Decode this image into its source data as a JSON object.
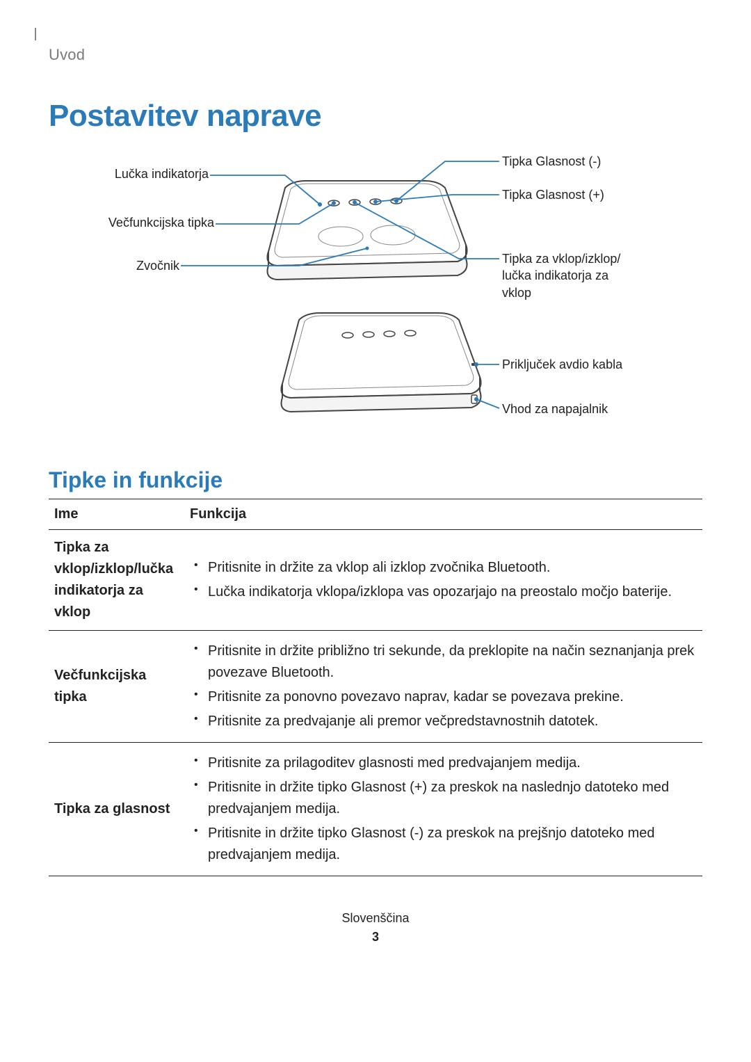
{
  "breadcrumb": "Uvod",
  "title": "Postavitev naprave",
  "diagram": {
    "left": {
      "indicator_light": "Lučka indikatorja",
      "multi_key": "Večfunkcijska tipka",
      "speaker": "Zvočnik"
    },
    "right": {
      "vol_minus": "Tipka Glasnost (-)",
      "vol_plus": "Tipka Glasnost (+)",
      "power_key": "Tipka za vklop/izklop/\nlučka indikatorja za\nvklop",
      "audio_jack": "Priključek avdio kabla",
      "charger_port": "Vhod za napajalnik"
    }
  },
  "section2_title": "Tipke in funkcije",
  "table": {
    "head": {
      "name": "Ime",
      "func": "Funkcija"
    },
    "rows": [
      {
        "name": "Tipka za vklop/izklop/lučka indikatorja za vklop",
        "items": [
          "Pritisnite in držite za vklop ali izklop zvočnika Bluetooth.",
          "Lučka indikatorja vklopa/izklopa vas opozarjajo na preostalo močjo baterije."
        ]
      },
      {
        "name": "Večfunkcijska tipka",
        "items": [
          "Pritisnite in držite približno tri sekunde, da preklopite na način seznanjanja prek povezave Bluetooth.",
          "Pritisnite za ponovno povezavo naprav, kadar se povezava prekine.",
          "Pritisnite za predvajanje ali premor večpredstavnostnih datotek."
        ]
      },
      {
        "name": "Tipka za glasnost",
        "items": [
          "Pritisnite za prilagoditev glasnosti med predvajanjem medija.",
          "Pritisnite in držite tipko Glasnost (+) za preskok na naslednjo datoteko med predvajanjem medija.",
          "Pritisnite in držite tipko Glasnost (-) za preskok na prejšnjo datoteko med predvajanjem medija."
        ]
      }
    ]
  },
  "footer_lang": "Slovenščina",
  "page_number": "3",
  "colors": {
    "accent": "#2b7bb9",
    "line": "#2b7bb9",
    "text": "#222",
    "gray": "#7a7a7a"
  },
  "speaker_svg": {
    "stroke": "#444",
    "stroke_width": 2,
    "fill_top": "#ffffff",
    "fill_side": "#f0f0f0"
  }
}
